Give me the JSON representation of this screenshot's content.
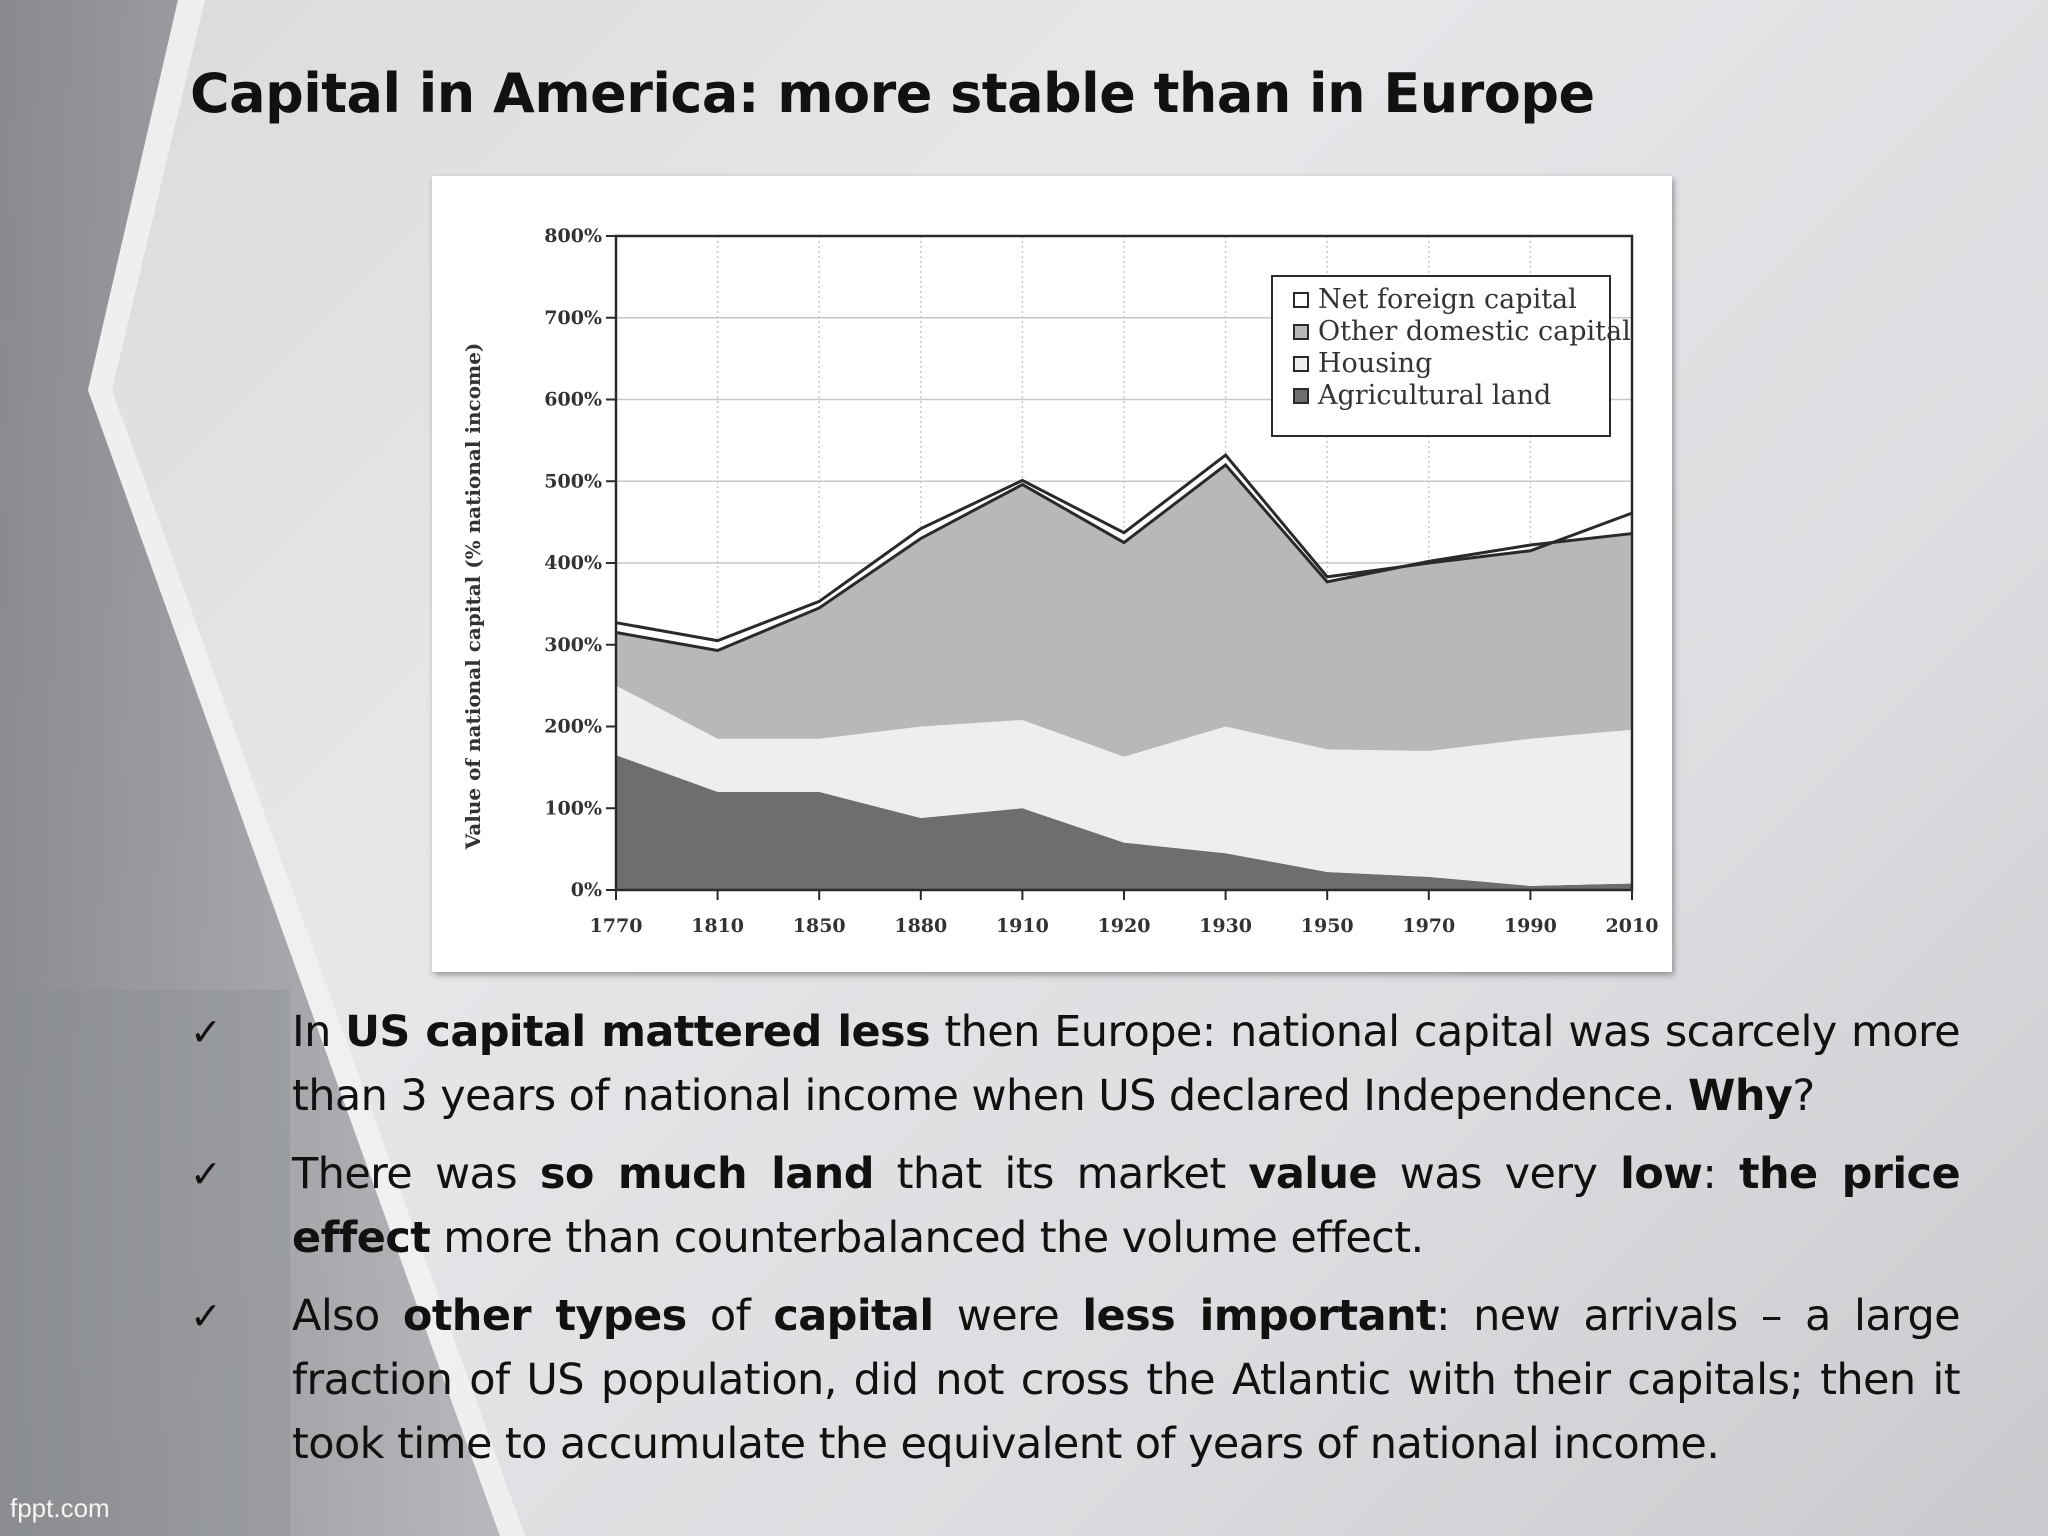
{
  "slide": {
    "title": "Capital in America: more stable than in Europe",
    "footer": "fppt.com"
  },
  "bullets": [
    {
      "parts": [
        {
          "text": "In ",
          "bold": false
        },
        {
          "text": "US capital mattered less",
          "bold": true
        },
        {
          "text": " then Europe: national capital was scarcely more than 3 years of national income when US declared Independence.  ",
          "bold": false
        },
        {
          "text": "Why",
          "bold": true
        },
        {
          "text": "?",
          "bold": false
        }
      ]
    },
    {
      "parts": [
        {
          "text": "There was ",
          "bold": false
        },
        {
          "text": "so much land",
          "bold": true
        },
        {
          "text": " that its market ",
          "bold": false
        },
        {
          "text": "value",
          "bold": true
        },
        {
          "text": " was very ",
          "bold": false
        },
        {
          "text": "low",
          "bold": true
        },
        {
          "text": ": ",
          "bold": false
        },
        {
          "text": "the price effect",
          "bold": true
        },
        {
          "text": " more than counterbalanced the volume effect.",
          "bold": false
        }
      ]
    },
    {
      "parts": [
        {
          "text": "Also ",
          "bold": false
        },
        {
          "text": "other types",
          "bold": true
        },
        {
          "text": " of ",
          "bold": false
        },
        {
          "text": "capital",
          "bold": true
        },
        {
          "text": " were ",
          "bold": false
        },
        {
          "text": "less important",
          "bold": true
        },
        {
          "text": ": new arrivals – a large fraction of US population, did not cross the Atlantic with their capitals; then it took time to accumulate the equivalent of years of national income.",
          "bold": false
        }
      ]
    }
  ],
  "check_glyph": "✓",
  "chart_data": {
    "type": "area",
    "stacked": true,
    "ylabel": "Value of national capital (% national income)",
    "xlabel": "",
    "x": [
      1770,
      1810,
      1850,
      1880,
      1910,
      1920,
      1930,
      1950,
      1970,
      1990,
      2010
    ],
    "x_tick_labels": [
      "1770",
      "1810",
      "1850",
      "1880",
      "1910",
      "1920",
      "1930",
      "1950",
      "1970",
      "1990",
      "2010"
    ],
    "ylim": [
      0,
      800
    ],
    "y_ticks": [
      0,
      100,
      200,
      300,
      400,
      500,
      600,
      700,
      800
    ],
    "y_tick_labels": [
      "0%",
      "100%",
      "200%",
      "300%",
      "400%",
      "500%",
      "600%",
      "700%",
      "800%"
    ],
    "grid": true,
    "legend_position": "top-right",
    "series": [
      {
        "name": "Agricultural land",
        "color": "#6e6e6e",
        "values": [
          165,
          120,
          120,
          88,
          100,
          58,
          45,
          22,
          16,
          5,
          8
        ]
      },
      {
        "name": "Housing",
        "color": "#eeeeee",
        "values": [
          85,
          65,
          65,
          112,
          108,
          105,
          155,
          150,
          154,
          180,
          188
        ]
      },
      {
        "name": "Other domestic capital",
        "color": "#b8b8b8",
        "values": [
          65,
          108,
          160,
          230,
          288,
          262,
          320,
          205,
          232,
          237,
          240
        ]
      },
      {
        "name": "Net foreign capital",
        "color": "#ffffff",
        "values": [
          12,
          12,
          8,
          12,
          5,
          12,
          12,
          6,
          -2,
          -7,
          25
        ]
      }
    ]
  },
  "colors": {
    "frame_line": "#2a2a2a",
    "grid": "#c8c8c8",
    "title": "#111111"
  }
}
